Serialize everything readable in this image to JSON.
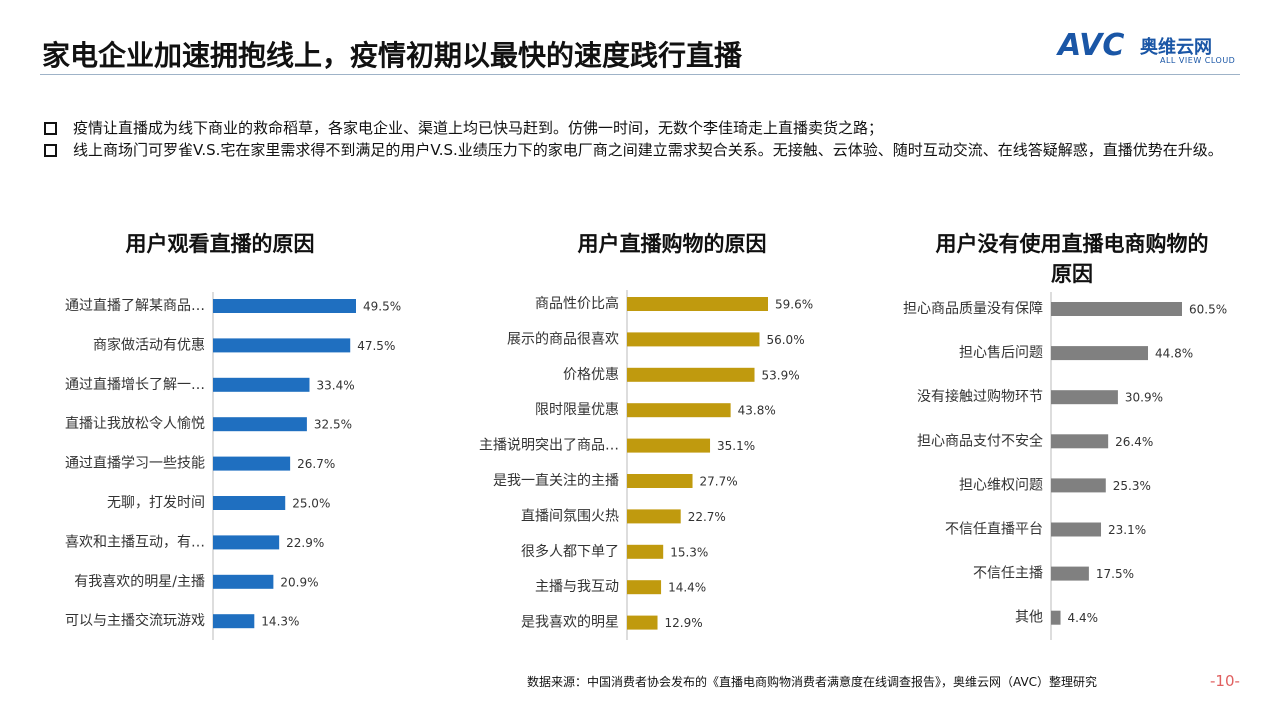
{
  "header": {
    "title": "家电企业加速拥抱线上，疫情初期以最快的速度践行直播",
    "logo": "AVC",
    "logo_cn": "奥维云网",
    "logo_en": "ALL VIEW CLOUD"
  },
  "bullets": [
    "疫情让直播成为线下商业的救命稻草，各家电企业、渠道上均已快马赶到。仿佛一时间，无数个李佳琦走上直播卖货之路；",
    "线上商场门可罗雀V.S.宅在家里需求得不到满足的用户V.S.业绩压力下的家电厂商之间建立需求契合关系。无接触、云体验、随时互动交流、在线答疑解惑，直播优势在升级。"
  ],
  "chart_data": [
    {
      "type": "bar",
      "orientation": "horizontal",
      "title": "用户观看直播的原因",
      "color": "#1f6fc0",
      "categories": [
        "通过直播了解某商品…",
        "商家做活动有优惠",
        "通过直播增长了解一…",
        "直播让我放松令人愉悦",
        "通过直播学习一些技能",
        "无聊，打发时间",
        "喜欢和主播互动，有…",
        "有我喜欢的明星/主播",
        "可以与主播交流玩游戏"
      ],
      "values": [
        49.5,
        47.5,
        33.4,
        32.5,
        26.7,
        25.0,
        22.9,
        20.9,
        14.3
      ],
      "value_labels": [
        "49.5%",
        "47.5%",
        "33.4%",
        "32.5%",
        "26.7%",
        "25.0%",
        "22.9%",
        "20.9%",
        "14.3%"
      ]
    },
    {
      "type": "bar",
      "orientation": "horizontal",
      "title": "用户直播购物的原因",
      "color": "#c09a0e",
      "categories": [
        "商品性价比高",
        "展示的商品很喜欢",
        "价格优惠",
        "限时限量优惠",
        "主播说明突出了商品…",
        "是我一直关注的主播",
        "直播间氛围火热",
        "很多人都下单了",
        "主播与我互动",
        "是我喜欢的明星"
      ],
      "values": [
        59.6,
        56.0,
        53.9,
        43.8,
        35.1,
        27.7,
        22.7,
        15.3,
        14.4,
        12.9
      ],
      "value_labels": [
        "59.6%",
        "56.0%",
        "53.9%",
        "43.8%",
        "35.1%",
        "27.7%",
        "22.7%",
        "15.3%",
        "14.4%",
        "12.9%"
      ]
    },
    {
      "type": "bar",
      "orientation": "horizontal",
      "title": "用户没有使用直播电商购物的原因",
      "color": "#808080",
      "categories": [
        "担心商品质量没有保障",
        "担心售后问题",
        "没有接触过购物环节",
        "担心商品支付不安全",
        "担心维权问题",
        "不信任直播平台",
        "不信任主播",
        "其他"
      ],
      "values": [
        60.5,
        44.8,
        30.9,
        26.4,
        25.3,
        23.1,
        17.5,
        4.4
      ],
      "value_labels": [
        "60.5%",
        "44.8%",
        "30.9%",
        "26.4%",
        "25.3%",
        "23.1%",
        "17.5%",
        "4.4%"
      ]
    }
  ],
  "footer": {
    "source": "数据来源：中国消费者协会发布的《直播电商购物消费者满意度在线调查报告》，奥维云网（AVC）整理研究",
    "page": "-10-"
  }
}
